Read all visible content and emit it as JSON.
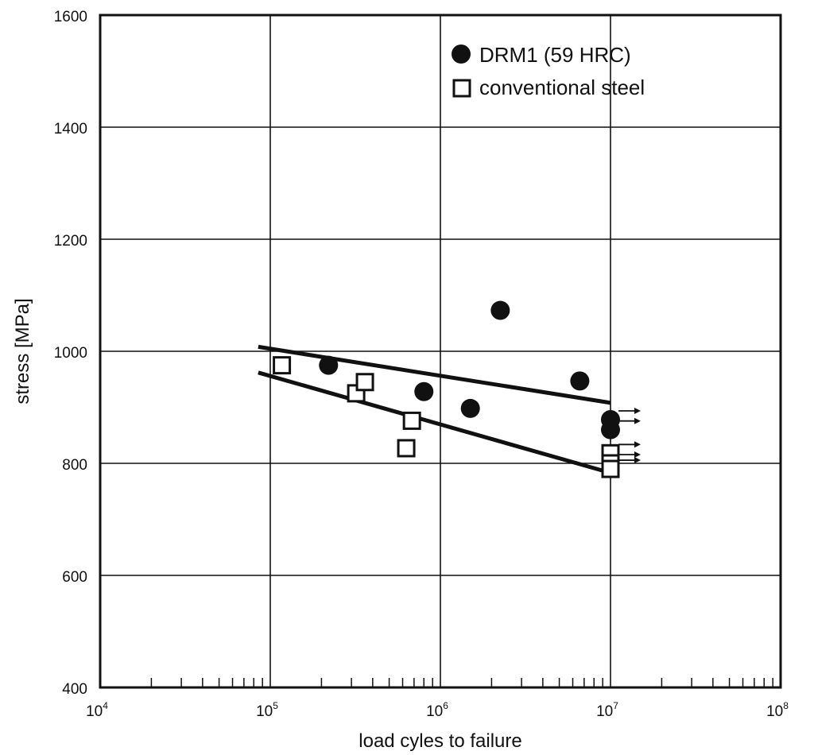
{
  "chart_data": {
    "type": "scatter",
    "xlabel": "load cyles to failure",
    "ylabel": "stress [MPa]",
    "x_scale": "log",
    "xlim": [
      10000,
      100000000
    ],
    "ylim": [
      400,
      1600
    ],
    "x_ticks": [
      {
        "value": 10000,
        "base": "10",
        "exp": "4"
      },
      {
        "value": 100000,
        "base": "10",
        "exp": "5"
      },
      {
        "value": 1000000,
        "base": "10",
        "exp": "6"
      },
      {
        "value": 10000000,
        "base": "10",
        "exp": "7"
      },
      {
        "value": 100000000,
        "base": "10",
        "exp": "8"
      }
    ],
    "y_ticks": [
      400,
      600,
      800,
      1000,
      1200,
      1400,
      1600
    ],
    "grid": true,
    "legend_position": "top-right",
    "series": [
      {
        "name": "DRM1 (59 HRC)",
        "marker": "filled-circle",
        "color": "#111111",
        "points": [
          {
            "x": 220000,
            "y": 975
          },
          {
            "x": 800000,
            "y": 928
          },
          {
            "x": 1500000,
            "y": 898
          },
          {
            "x": 2250000,
            "y": 1073
          },
          {
            "x": 6600000,
            "y": 947
          },
          {
            "x": 10000000,
            "y": 878,
            "runout": true
          },
          {
            "x": 10000000,
            "y": 860,
            "runout": true
          }
        ],
        "trend_line": [
          {
            "x": 85000,
            "y": 1008
          },
          {
            "x": 10000000,
            "y": 908
          }
        ]
      },
      {
        "name": "conventional steel",
        "marker": "open-square",
        "color": "#111111",
        "points": [
          {
            "x": 117000,
            "y": 975
          },
          {
            "x": 320000,
            "y": 925
          },
          {
            "x": 360000,
            "y": 945
          },
          {
            "x": 630000,
            "y": 827
          },
          {
            "x": 680000,
            "y": 876
          },
          {
            "x": 10000000,
            "y": 818,
            "runout": true
          },
          {
            "x": 10000000,
            "y": 800,
            "runout": true
          },
          {
            "x": 10000000,
            "y": 790,
            "runout": true
          }
        ],
        "trend_line": [
          {
            "x": 85000,
            "y": 962
          },
          {
            "x": 10000000,
            "y": 783
          }
        ]
      }
    ]
  }
}
